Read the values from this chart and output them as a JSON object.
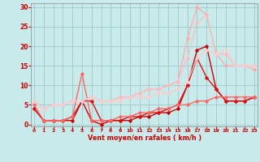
{
  "bg_color": "#c8eaea",
  "grid_color": "#a0c8c8",
  "xlabel": "Vent moyen/en rafales ( km/h )",
  "xlabel_color": "#cc0000",
  "ylabel_color": "#cc0000",
  "xticks": [
    0,
    1,
    2,
    3,
    4,
    5,
    6,
    7,
    8,
    9,
    10,
    11,
    12,
    13,
    14,
    15,
    16,
    17,
    18,
    19,
    20,
    21,
    22,
    23
  ],
  "yticks": [
    0,
    5,
    10,
    15,
    20,
    25,
    30
  ],
  "xlim": [
    -0.3,
    23.3
  ],
  "ylim": [
    -0.5,
    31
  ],
  "lines": [
    {
      "x": [
        0,
        1,
        2,
        3,
        4,
        5,
        6,
        7,
        8,
        9,
        10,
        11,
        12,
        13,
        14,
        15,
        16,
        17,
        18,
        19,
        20,
        21,
        22,
        23
      ],
      "y": [
        4,
        1,
        1,
        1,
        1,
        6,
        1,
        0,
        1,
        1,
        1,
        2,
        2,
        3,
        3,
        4,
        10,
        19,
        20,
        9,
        6,
        6,
        6,
        7
      ],
      "color": "#cc0000",
      "lw": 1.0,
      "marker": "D",
      "ms": 1.8
    },
    {
      "x": [
        0,
        1,
        2,
        3,
        4,
        5,
        6,
        7,
        8,
        9,
        10,
        11,
        12,
        13,
        14,
        15,
        16,
        17,
        18,
        19,
        20,
        21,
        22,
        23
      ],
      "y": [
        4,
        1,
        1,
        1,
        2,
        6,
        6,
        1,
        1,
        1,
        2,
        2,
        3,
        3,
        4,
        5,
        10,
        17,
        12,
        9,
        6,
        6,
        6,
        7
      ],
      "color": "#dd1111",
      "lw": 1.0,
      "marker": "D",
      "ms": 1.8
    },
    {
      "x": [
        0,
        1,
        2,
        3,
        4,
        5,
        6,
        7,
        8,
        9,
        10,
        11,
        12,
        13,
        14,
        15,
        16,
        17,
        18,
        19,
        20,
        21,
        22,
        23
      ],
      "y": [
        5,
        1,
        1,
        1,
        2,
        13,
        1,
        1,
        1,
        2,
        2,
        3,
        3,
        4,
        4,
        5,
        5,
        6,
        6,
        7,
        7,
        7,
        7,
        7
      ],
      "color": "#ff6666",
      "lw": 1.0,
      "marker": "D",
      "ms": 1.8
    },
    {
      "x": [
        0,
        1,
        2,
        3,
        4,
        5,
        6,
        7,
        8,
        9,
        10,
        11,
        12,
        13,
        14,
        15,
        16,
        17,
        18,
        19,
        20,
        21,
        22,
        23
      ],
      "y": [
        6,
        4,
        5,
        5,
        6,
        6,
        7,
        6,
        6,
        7,
        7,
        8,
        9,
        9,
        10,
        11,
        22,
        30,
        28,
        18,
        15,
        15,
        15,
        14
      ],
      "color": "#ffaaaa",
      "lw": 0.9,
      "marker": "D",
      "ms": 1.8
    },
    {
      "x": [
        0,
        1,
        2,
        3,
        4,
        5,
        6,
        7,
        8,
        9,
        10,
        11,
        12,
        13,
        14,
        15,
        16,
        17,
        18,
        19,
        20,
        21,
        22,
        23
      ],
      "y": [
        6,
        4,
        5,
        5,
        6,
        6,
        7,
        6,
        6,
        7,
        7,
        8,
        9,
        9,
        10,
        11,
        17,
        26,
        28,
        18,
        18,
        15,
        15,
        15
      ],
      "color": "#ffbbbb",
      "lw": 0.9,
      "marker": "D",
      "ms": 1.8
    },
    {
      "x": [
        0,
        1,
        2,
        3,
        4,
        5,
        6,
        7,
        8,
        9,
        10,
        11,
        12,
        13,
        14,
        15,
        16,
        17,
        18,
        19,
        20,
        21,
        22,
        23
      ],
      "y": [
        6,
        4,
        5,
        5,
        6,
        6,
        7,
        6,
        6,
        6,
        7,
        7,
        7,
        8,
        8,
        9,
        11,
        17,
        19,
        18,
        19,
        15,
        15,
        15
      ],
      "color": "#ffcccc",
      "lw": 0.9,
      "marker": "D",
      "ms": 1.8
    }
  ]
}
